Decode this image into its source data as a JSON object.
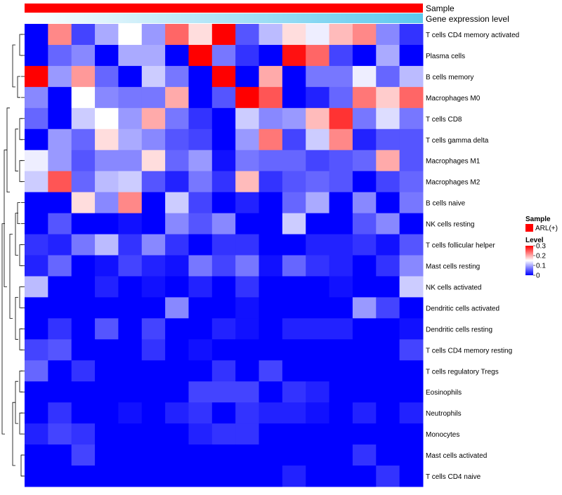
{
  "chart_data": {
    "type": "heatmap",
    "annotations": {
      "top_track_label": "Sample",
      "sub_track_label": "Gene expression level",
      "sample_color": "#FF0000",
      "gene_expr_gradient": [
        "#FFFFFF",
        "#5BC8EE"
      ]
    },
    "legend": {
      "placement": "right",
      "sample_title": "Sample",
      "sample_entry": "ARL(+)",
      "level_title": "Level",
      "level_ticks": [
        "0.3",
        "0.2",
        "0.1",
        "0"
      ]
    },
    "color_scale": {
      "min": 0,
      "max": 0.3,
      "colors": [
        "#0000FF",
        "#FFFFFF",
        "#FF0000"
      ]
    },
    "rows": [
      "T cells CD4 memory activated",
      "Plasma cells",
      "B cells memory",
      "Macrophages M0",
      "T cells CD8",
      "T cells gamma delta",
      "Macrophages M1",
      "Macrophages M2",
      "B cells naive",
      "NK cells resting",
      "T cells follicular helper",
      "Mast cells resting",
      "NK cells activated",
      "Dendritic cells activated",
      "Dendritic cells resting",
      "T cells CD4 memory resting",
      "T cells regulatory  Tregs",
      "Eosinophils",
      "Neutrophils",
      "Monocytes",
      "Mast cells activated",
      "T cells CD4 naive"
    ],
    "values": [
      [
        0.0,
        0.22,
        0.04,
        0.1,
        0.15,
        0.09,
        0.24,
        0.17,
        0.3,
        0.05,
        0.11,
        0.17,
        0.14,
        0.19,
        0.22,
        0.08,
        0.03
      ],
      [
        0.0,
        0.06,
        0.08,
        0.0,
        0.1,
        0.1,
        0.0,
        0.3,
        0.07,
        0.03,
        0.0,
        0.29,
        0.24,
        0.04,
        0.0,
        0.1,
        0.0
      ],
      [
        0.3,
        0.09,
        0.21,
        0.06,
        0.0,
        0.12,
        0.07,
        0.0,
        0.3,
        0.0,
        0.2,
        0.0,
        0.07,
        0.07,
        0.14,
        0.06,
        0.11
      ],
      [
        0.08,
        0.0,
        0.15,
        0.08,
        0.07,
        0.07,
        0.2,
        0.0,
        0.05,
        0.3,
        0.25,
        0.0,
        0.02,
        0.06,
        0.23,
        0.18,
        0.24
      ],
      [
        0.06,
        0.0,
        0.12,
        0.15,
        0.09,
        0.2,
        0.07,
        0.03,
        0.0,
        0.12,
        0.08,
        0.09,
        0.19,
        0.27,
        0.07,
        0.13,
        0.07
      ],
      [
        0.0,
        0.09,
        0.06,
        0.17,
        0.1,
        0.08,
        0.05,
        0.04,
        0.0,
        0.09,
        0.23,
        0.04,
        0.12,
        0.22,
        0.02,
        0.05,
        0.05
      ],
      [
        0.14,
        0.09,
        0.05,
        0.08,
        0.08,
        0.17,
        0.06,
        0.09,
        0.01,
        0.07,
        0.06,
        0.06,
        0.04,
        0.05,
        0.06,
        0.2,
        0.05
      ],
      [
        0.12,
        0.25,
        0.06,
        0.11,
        0.12,
        0.05,
        0.02,
        0.07,
        0.03,
        0.19,
        0.03,
        0.05,
        0.06,
        0.05,
        0.0,
        0.04,
        0.06
      ],
      [
        0.0,
        0.0,
        0.17,
        0.08,
        0.22,
        0.0,
        0.12,
        0.04,
        0.0,
        0.02,
        0.0,
        0.06,
        0.1,
        0.0,
        0.08,
        0.0,
        0.07
      ],
      [
        0.0,
        0.05,
        0.0,
        0.0,
        0.01,
        0.0,
        0.08,
        0.05,
        0.08,
        0.0,
        0.0,
        0.12,
        0.0,
        0.0,
        0.05,
        0.08,
        0.0
      ],
      [
        0.03,
        0.02,
        0.07,
        0.11,
        0.03,
        0.08,
        0.03,
        0.0,
        0.03,
        0.03,
        0.0,
        0.0,
        0.02,
        0.02,
        0.03,
        0.01,
        0.05
      ],
      [
        0.02,
        0.06,
        0.0,
        0.01,
        0.04,
        0.02,
        0.01,
        0.07,
        0.04,
        0.07,
        0.01,
        0.06,
        0.03,
        0.02,
        0.0,
        0.03,
        0.08
      ],
      [
        0.11,
        0.0,
        0.0,
        0.02,
        0.0,
        0.01,
        0.0,
        0.02,
        0.0,
        0.03,
        0.0,
        0.0,
        0.0,
        0.01,
        0.0,
        0.0,
        0.12
      ],
      [
        0.0,
        0.0,
        0.0,
        0.0,
        0.0,
        0.0,
        0.08,
        0.0,
        0.0,
        0.01,
        0.0,
        0.0,
        0.0,
        0.0,
        0.09,
        0.04,
        0.0
      ],
      [
        0.0,
        0.03,
        0.0,
        0.05,
        0.0,
        0.04,
        0.0,
        0.0,
        0.02,
        0.01,
        0.0,
        0.02,
        0.02,
        0.02,
        0.0,
        0.0,
        0.01
      ],
      [
        0.04,
        0.05,
        0.0,
        0.0,
        0.0,
        0.03,
        0.0,
        0.01,
        0.0,
        0.0,
        0.0,
        0.0,
        0.0,
        0.0,
        0.0,
        0.0,
        0.04
      ],
      [
        0.06,
        0.0,
        0.03,
        0.0,
        0.0,
        0.0,
        0.0,
        0.0,
        0.03,
        0.0,
        0.04,
        0.0,
        0.0,
        0.0,
        0.0,
        0.0,
        0.0
      ],
      [
        0.0,
        0.0,
        0.0,
        0.0,
        0.0,
        0.0,
        0.0,
        0.04,
        0.04,
        0.04,
        0.0,
        0.03,
        0.02,
        0.0,
        0.0,
        0.0,
        0.0
      ],
      [
        0.0,
        0.03,
        0.0,
        0.0,
        0.01,
        0.0,
        0.02,
        0.03,
        0.0,
        0.03,
        0.02,
        0.02,
        0.01,
        0.0,
        0.02,
        0.0,
        0.02
      ],
      [
        0.02,
        0.04,
        0.03,
        0.0,
        0.0,
        0.0,
        0.0,
        0.02,
        0.03,
        0.03,
        0.0,
        0.0,
        0.0,
        0.0,
        0.0,
        0.0,
        0.0
      ],
      [
        0.0,
        0.0,
        0.04,
        0.0,
        0.0,
        0.0,
        0.0,
        0.0,
        0.0,
        0.0,
        0.0,
        0.0,
        0.0,
        0.0,
        0.03,
        0.0,
        0.0
      ],
      [
        0.0,
        0.0,
        0.0,
        0.0,
        0.0,
        0.0,
        0.0,
        0.0,
        0.0,
        0.0,
        0.0,
        0.02,
        0.0,
        0.0,
        0.0,
        0.03,
        0.0
      ]
    ]
  }
}
